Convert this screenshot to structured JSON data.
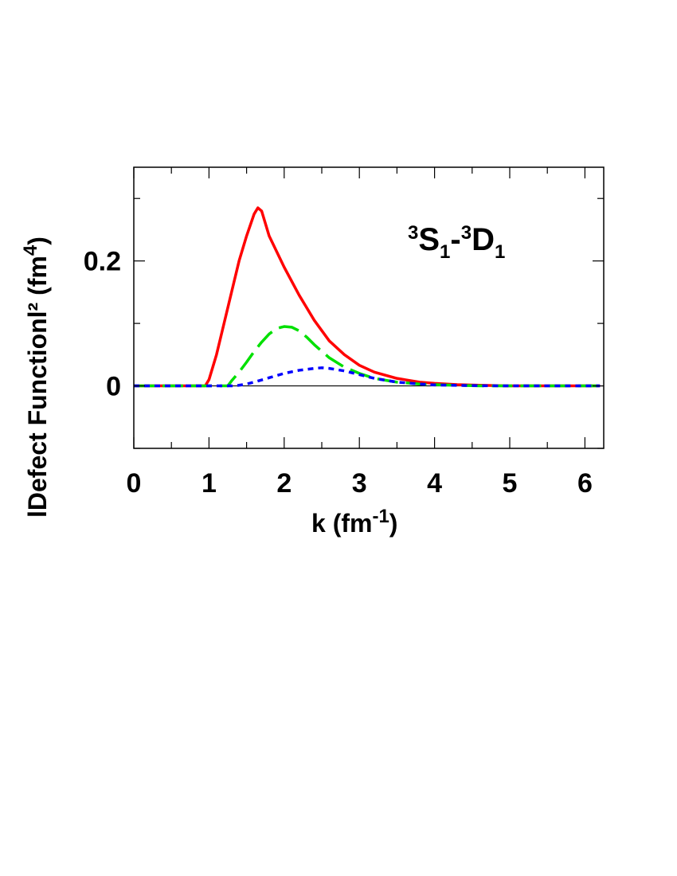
{
  "chart_data": {
    "type": "line",
    "xlabel": {
      "main": "k (fm",
      "sup": "-1",
      "tail": ")"
    },
    "ylabel": {
      "main": "lDefect Functionl² (fm",
      "sup": "4",
      "tail": ")"
    },
    "annotation": {
      "sup1": "3",
      "s": "S",
      "sub1": "1",
      "dash": "-",
      "sup2": "3",
      "d": "D",
      "sub2": "1"
    },
    "xlim": [
      0,
      6.25
    ],
    "ylim": [
      -0.1,
      0.35
    ],
    "x_ticks": [
      "0",
      "1",
      "2",
      "3",
      "4",
      "5",
      "6"
    ],
    "y_ticks": [
      {
        "value": 0,
        "label": "0"
      },
      {
        "value": 0.2,
        "label": "0.2"
      }
    ],
    "zero_line": true,
    "grid": false,
    "series": [
      {
        "color": "#ff0000",
        "style": "solid",
        "x": [
          0,
          0.95,
          1.0,
          1.1,
          1.2,
          1.3,
          1.4,
          1.5,
          1.6,
          1.65,
          1.7,
          1.8,
          2.0,
          2.2,
          2.4,
          2.6,
          2.8,
          3.0,
          3.2,
          3.5,
          3.8,
          4.0,
          4.3,
          4.6,
          5.0,
          5.5,
          6.0,
          6.2
        ],
        "y": [
          0,
          0,
          0.01,
          0.05,
          0.1,
          0.15,
          0.2,
          0.24,
          0.275,
          0.285,
          0.28,
          0.24,
          0.19,
          0.145,
          0.105,
          0.072,
          0.05,
          0.033,
          0.022,
          0.012,
          0.006,
          0.004,
          0.002,
          0.001,
          0.0,
          0,
          0,
          0
        ]
      },
      {
        "color": "#00e000",
        "style": "dashed",
        "x": [
          0,
          1.25,
          1.3,
          1.4,
          1.5,
          1.6,
          1.7,
          1.8,
          1.9,
          2.0,
          2.1,
          2.2,
          2.3,
          2.4,
          2.6,
          2.8,
          3.0,
          3.2,
          3.5,
          3.8,
          4.0,
          4.3,
          4.6,
          5.0,
          5.5,
          6.0,
          6.2
        ],
        "y": [
          0,
          0,
          0.008,
          0.022,
          0.038,
          0.055,
          0.07,
          0.083,
          0.092,
          0.095,
          0.094,
          0.088,
          0.078,
          0.066,
          0.045,
          0.03,
          0.02,
          0.012,
          0.006,
          0.003,
          0.002,
          0.001,
          0.0,
          0,
          0,
          0,
          0
        ]
      },
      {
        "color": "#0000ff",
        "style": "dotted",
        "x": [
          0,
          1.3,
          1.4,
          1.5,
          1.6,
          1.8,
          2.0,
          2.2,
          2.4,
          2.5,
          2.6,
          2.8,
          3.0,
          3.2,
          3.5,
          3.8,
          4.0,
          4.3,
          4.6,
          5.0,
          5.5,
          6.0,
          6.2
        ],
        "y": [
          0,
          0,
          0.001,
          0.003,
          0.006,
          0.013,
          0.02,
          0.025,
          0.028,
          0.029,
          0.028,
          0.024,
          0.018,
          0.012,
          0.006,
          0.003,
          0.0015,
          0.0008,
          0.0003,
          0,
          0,
          0,
          0
        ]
      }
    ]
  }
}
